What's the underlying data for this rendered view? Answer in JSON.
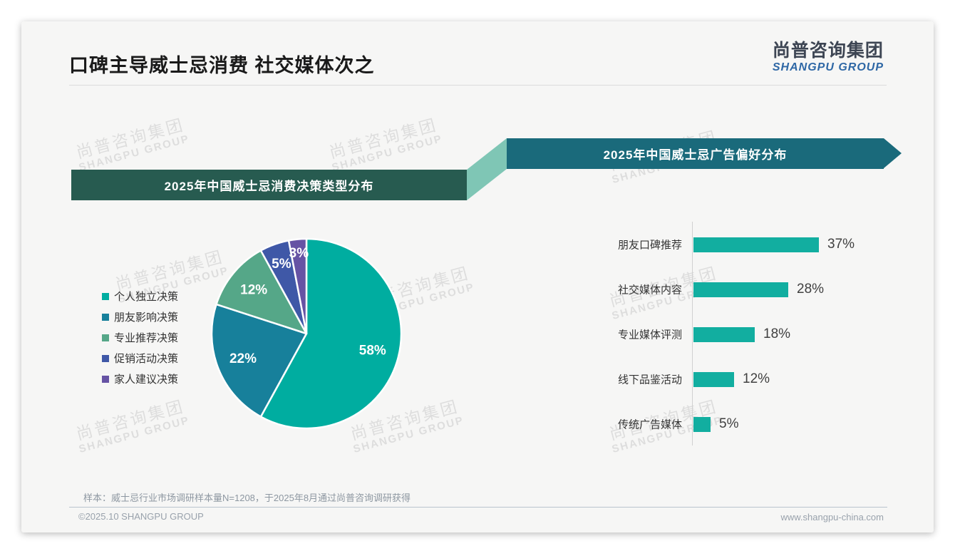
{
  "page": {
    "title": "口碑主导威士忌消费 社交媒体次之",
    "logo": {
      "cn": "尚普咨询集团",
      "en": "SHANGPU GROUP"
    },
    "watermark": {
      "cn": "尚普咨询集团",
      "en": "SHANGPU GROUP"
    },
    "footer": {
      "note": "样本：威士忌行业市场调研样本量N=1208，于2025年8月通过尚普咨询调研获得",
      "copyright": "©2025.10 SHANGPU GROUP",
      "website": "www.shangpu-china.com"
    }
  },
  "colors": {
    "card_bg": "#f6f6f5",
    "left_banner": "#275B50",
    "right_banner": "#1A6A7B",
    "connector": "#7FC6B5",
    "bar": "#12AEA0",
    "logo_cn": "#3d4553",
    "logo_en": "#2e67a5"
  },
  "chart_data": [
    {
      "type": "pie",
      "title": "2025年中国威士忌消费决策类型分布",
      "labels": [
        "个人独立决策",
        "朋友影响决策",
        "专业推荐决策",
        "促销活动决策",
        "家人建议决策"
      ],
      "values": [
        58,
        22,
        12,
        5,
        3
      ],
      "data_labels": [
        "58%",
        "22%",
        "12%",
        "5%",
        "3%"
      ],
      "colors": [
        "#00ADA0",
        "#17809B",
        "#55A788",
        "#3F58A7",
        "#6653A4"
      ],
      "legend_position": "left",
      "start_angle_deg_from_top": 0,
      "direction": "clockwise"
    },
    {
      "type": "bar",
      "title": "2025年中国威士忌广告偏好分布",
      "orientation": "horizontal",
      "categories": [
        "朋友口碑推荐",
        "社交媒体内容",
        "专业媒体评测",
        "线下品鉴活动",
        "传统广告媒体"
      ],
      "values": [
        37,
        28,
        18,
        12,
        5
      ],
      "data_labels": [
        "37%",
        "28%",
        "18%",
        "12%",
        "5%"
      ],
      "bar_color": "#12AEA0",
      "xlim": [
        0,
        40
      ],
      "grid": false,
      "value_label_position": "right-of-bar"
    }
  ]
}
